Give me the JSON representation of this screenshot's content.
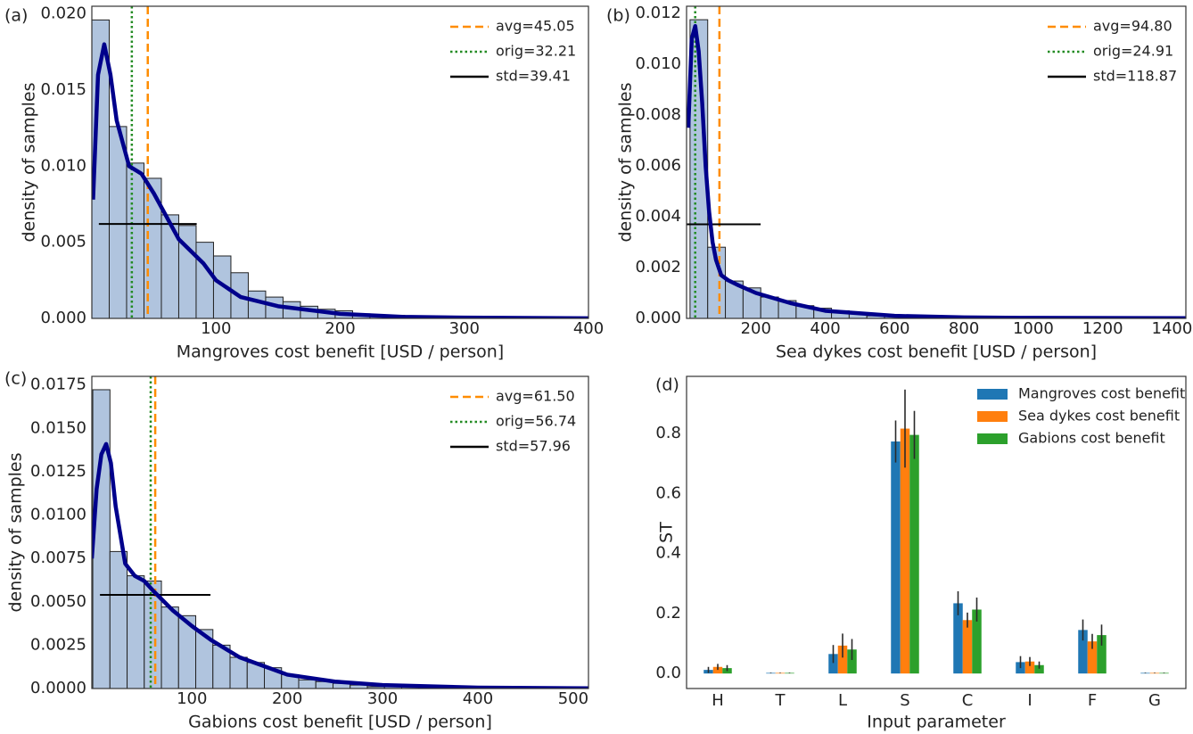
{
  "chart_data": [
    {
      "type": "histogram",
      "label": "(a)",
      "xlabel": "Mangroves cost benefit [USD / person]",
      "ylabel": "density of samples",
      "bins": [
        0,
        14,
        28,
        42,
        56,
        70,
        84,
        98,
        112,
        126,
        140,
        154,
        168,
        182,
        196,
        210,
        224,
        238,
        252,
        266,
        280
      ],
      "counts": [
        0.0196,
        0.0126,
        0.0102,
        0.0092,
        0.0068,
        0.0061,
        0.005,
        0.0041,
        0.003,
        0.0018,
        0.0014,
        0.0011,
        0.0008,
        0.0006,
        0.0005,
        0.0003,
        0.0002,
        0.0002,
        0.0001,
        0.0001
      ],
      "color": "#b0c4de",
      "kde": {
        "color": "#00008b",
        "x": [
          1,
          5,
          10,
          15,
          20,
          30,
          40,
          50,
          60,
          70,
          80,
          90,
          100,
          120,
          150,
          200,
          250,
          300,
          400
        ],
        "values": [
          0.0078,
          0.016,
          0.018,
          0.016,
          0.013,
          0.01,
          0.0095,
          0.0082,
          0.0067,
          0.0052,
          0.0044,
          0.0036,
          0.0025,
          0.0014,
          0.0008,
          0.0003,
          0.0001,
          5e-05,
          1e-05
        ]
      },
      "ref_lines": [
        {
          "name": "avg=45.05",
          "value": 45.05,
          "color": "#ff8c00",
          "style": "dashed"
        },
        {
          "name": "orig=32.21",
          "value": 32.21,
          "color": "#228b22",
          "style": "dotted"
        },
        {
          "name": "std=39.41",
          "value": 39.41,
          "level": 0.0062,
          "color": "#000000",
          "style": "solid"
        }
      ],
      "xlim": [
        0,
        400
      ],
      "ylim": [
        0,
        0.0205
      ],
      "xticks": [
        100,
        200,
        300,
        400
      ],
      "yticks": [
        {
          "value": 0,
          "label": "0.000"
        },
        0.005,
        {
          "value": 0.01,
          "label": "0.010"
        },
        0.015,
        {
          "value": 0.02,
          "label": "0.020"
        }
      ]
    },
    {
      "type": "histogram",
      "label": "(b)",
      "xlabel": "Sea dykes cost benefit [USD / person]",
      "ylabel": "density of samples",
      "bins": [
        10,
        61,
        112,
        163,
        214,
        265,
        316,
        367,
        418,
        469,
        520,
        571,
        622
      ],
      "counts": [
        0.01175,
        0.0028,
        0.00147,
        0.0012,
        0.00084,
        0.0007,
        0.0005,
        0.0004,
        0.0003,
        0.0002,
        0.0001,
        0.0001
      ],
      "color": "#b0c4de",
      "kde": {
        "color": "#00008b",
        "x": [
          5,
          15,
          25,
          35,
          45,
          55,
          65,
          75,
          85,
          100,
          120,
          150,
          200,
          300,
          400,
          600,
          800,
          1000,
          1440
        ],
        "values": [
          0.0075,
          0.011,
          0.0115,
          0.0105,
          0.0085,
          0.006,
          0.0042,
          0.003,
          0.0023,
          0.0017,
          0.0015,
          0.0013,
          0.001,
          0.0006,
          0.0003,
          0.0001,
          4e-05,
          2e-05,
          1e-05
        ]
      },
      "ref_lines": [
        {
          "name": "avg=94.80",
          "value": 94.8,
          "color": "#ff8c00",
          "style": "dashed"
        },
        {
          "name": "orig=24.91",
          "value": 24.91,
          "color": "#228b22",
          "style": "dotted"
        },
        {
          "name": "std=118.87",
          "value": 118.87,
          "level": 0.0037,
          "color": "#000000",
          "style": "solid"
        }
      ],
      "xlim": [
        0,
        1440
      ],
      "ylim": [
        0,
        0.01228
      ],
      "xticks": [
        200,
        400,
        600,
        800,
        1000,
        1200,
        1400
      ],
      "yticks": [
        {
          "value": 0,
          "label": "0.000"
        },
        0.002,
        0.004,
        0.006,
        0.008,
        {
          "value": 0.01,
          "label": "0.010"
        },
        0.012
      ]
    },
    {
      "type": "histogram",
      "label": "(c)",
      "xlabel": "Gabions cost benefit [USD / person]",
      "ylabel": "density of samples",
      "bins": [
        -4,
        14,
        32,
        50,
        68,
        86,
        104,
        122,
        140,
        158,
        176,
        194,
        212,
        230,
        248,
        266,
        284,
        302,
        320,
        338,
        356
      ],
      "counts": [
        0.01723,
        0.0079,
        0.0065,
        0.0062,
        0.0047,
        0.0042,
        0.0034,
        0.0025,
        0.0018,
        0.0015,
        0.0012,
        0.0008,
        0.0005,
        0.0004,
        0.0003,
        0.0002,
        0.0001,
        0.0001,
        0.0001,
        0.0001
      ],
      "color": "#b0c4de",
      "kde": {
        "color": "#00008b",
        "x": [
          -5,
          0,
          5,
          10,
          15,
          20,
          30,
          40,
          50,
          60,
          80,
          100,
          120,
          150,
          180,
          200,
          250,
          300,
          400,
          516
        ],
        "values": [
          0.0075,
          0.0115,
          0.0135,
          0.0141,
          0.013,
          0.0105,
          0.0072,
          0.0065,
          0.0062,
          0.0056,
          0.0045,
          0.0036,
          0.0028,
          0.0018,
          0.0012,
          0.0008,
          0.0004,
          0.0002,
          5e-05,
          1e-05
        ]
      },
      "ref_lines": [
        {
          "name": "avg=61.50",
          "value": 61.5,
          "color": "#ff8c00",
          "style": "dashed"
        },
        {
          "name": "orig=56.74",
          "value": 56.74,
          "color": "#228b22",
          "style": "dotted"
        },
        {
          "name": "std=57.96",
          "value": 57.96,
          "level": 0.0054,
          "color": "#000000",
          "style": "solid"
        }
      ],
      "xlim": [
        -5,
        516
      ],
      "ylim": [
        0,
        0.018
      ],
      "xticks": [
        100,
        200,
        300,
        400,
        500
      ],
      "yticks": [
        {
          "value": 0,
          "label": "0.0000"
        },
        0.0025,
        {
          "value": 0.005,
          "label": "0.0050"
        },
        0.0075,
        {
          "value": 0.01,
          "label": "0.0100"
        },
        0.0125,
        {
          "value": 0.015,
          "label": "0.0150"
        },
        0.0175
      ]
    },
    {
      "type": "bar",
      "label": "(d)",
      "xlabel": "Input parameter",
      "ylabel": "ST",
      "categories": [
        "H",
        "T",
        "L",
        "S",
        "C",
        "I",
        "F",
        "G"
      ],
      "series": [
        {
          "name": "Mangroves cost benefit",
          "color": "#1f77b4",
          "values": [
            0.012,
            0.002,
            0.065,
            0.773,
            0.234,
            0.038,
            0.145,
            0.002
          ],
          "errors": [
            0.01,
            0.001,
            0.03,
            0.07,
            0.04,
            0.02,
            0.035,
            0.001
          ]
        },
        {
          "name": "Sea dykes cost benefit",
          "color": "#ff7f0e",
          "values": [
            0.022,
            0.002,
            0.093,
            0.816,
            0.178,
            0.04,
            0.107,
            0.002
          ],
          "errors": [
            0.01,
            0.001,
            0.04,
            0.13,
            0.025,
            0.015,
            0.025,
            0.001
          ]
        },
        {
          "name": "Gabions cost benefit",
          "color": "#2ca02c",
          "values": [
            0.018,
            0.002,
            0.08,
            0.795,
            0.213,
            0.028,
            0.128,
            0.002
          ],
          "errors": [
            0.01,
            0.001,
            0.035,
            0.08,
            0.04,
            0.012,
            0.035,
            0.001
          ]
        }
      ],
      "ylim": [
        -0.05,
        0.99
      ],
      "yticks": [
        {
          "value": 0,
          "label": "0.0"
        },
        0.2,
        0.4,
        0.6,
        0.8
      ]
    }
  ]
}
